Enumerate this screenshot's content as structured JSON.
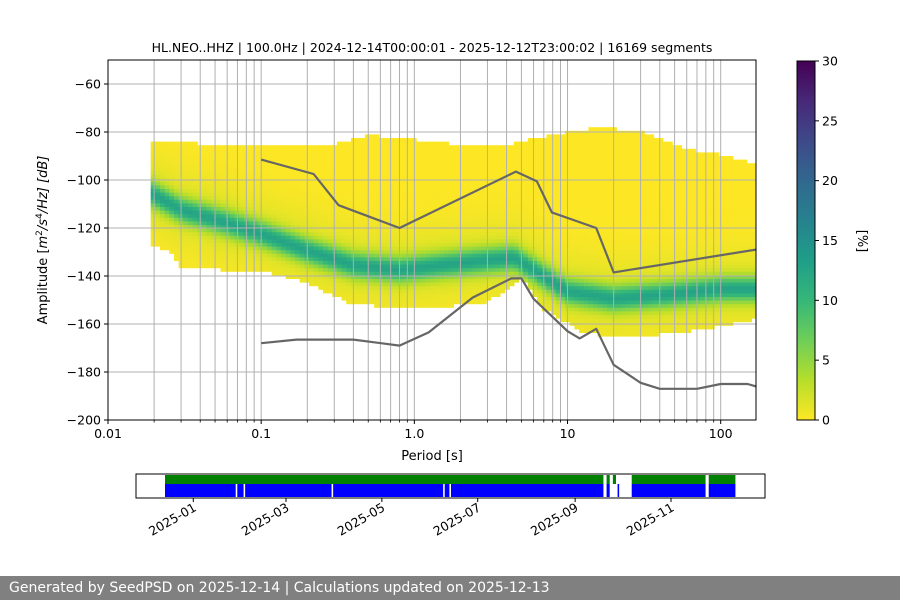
{
  "chart_data": [
    {
      "type": "heatmap",
      "title": "HL.NEO..HHZ | 100.0Hz | 2024-12-14T00:00:01 - 2025-12-12T23:00:02 | 16169 segments",
      "xlabel": "Period [s]",
      "ylabel_parts": {
        "pre": "Amplitude [",
        "m": "m",
        "sup1": "2",
        "mid": "/s",
        "sup2": "4",
        "post": "/Hz] [dB]"
      },
      "xscale": "log",
      "xlim": [
        0.01,
        170
      ],
      "ylim": [
        -200,
        -50
      ],
      "x_ticks": [
        0.01,
        0.1,
        1,
        10,
        100
      ],
      "x_tick_labels": [
        "0.01",
        "0.1",
        "1.0",
        "10",
        "100"
      ],
      "y_ticks": [
        -200,
        -180,
        -160,
        -140,
        -120,
        -100,
        -80,
        -60
      ],
      "y_tick_labels": [
        "−200",
        "−180",
        "−160",
        "−140",
        "−120",
        "−100",
        "−80",
        "−60"
      ],
      "grid": true,
      "colorbar": {
        "label": "[%]",
        "range": [
          0,
          30
        ],
        "ticks": [
          0,
          5,
          10,
          15,
          20,
          25,
          30
        ],
        "tick_labels": [
          "0",
          "5",
          "10",
          "15",
          "20",
          "25",
          "30"
        ],
        "colormap": [
          "#fde725",
          "#b5de2b",
          "#6ece58",
          "#35b779",
          "#1f9e89",
          "#26828e",
          "#31688e",
          "#3e4989",
          "#482878",
          "#440154"
        ]
      },
      "density": {
        "period_range": [
          0.019,
          170
        ],
        "mode": [
          [
            0.019,
            -106
          ],
          [
            0.03,
            -113
          ],
          [
            0.05,
            -117
          ],
          [
            0.1,
            -123
          ],
          [
            0.2,
            -130
          ],
          [
            0.4,
            -136
          ],
          [
            0.8,
            -138
          ],
          [
            1.5,
            -136
          ],
          [
            3,
            -134
          ],
          [
            4.5,
            -133
          ],
          [
            6,
            -138
          ],
          [
            10,
            -147
          ],
          [
            20,
            -150
          ],
          [
            50,
            -148
          ],
          [
            100,
            -146
          ],
          [
            170,
            -146
          ]
        ],
        "upper": [
          [
            0.019,
            -85
          ],
          [
            0.03,
            -85
          ],
          [
            0.05,
            -86
          ],
          [
            0.1,
            -86
          ],
          [
            0.3,
            -86
          ],
          [
            0.5,
            -82
          ],
          [
            1,
            -84
          ],
          [
            2,
            -86
          ],
          [
            4,
            -86
          ],
          [
            8,
            -82
          ],
          [
            15,
            -79
          ],
          [
            30,
            -80
          ],
          [
            60,
            -88
          ],
          [
            100,
            -90
          ],
          [
            170,
            -94
          ]
        ],
        "lower": [
          [
            0.019,
            -127
          ],
          [
            0.025,
            -128
          ],
          [
            0.03,
            -136
          ],
          [
            0.1,
            -137
          ],
          [
            0.2,
            -142
          ],
          [
            0.4,
            -151
          ],
          [
            0.8,
            -152
          ],
          [
            1.5,
            -152
          ],
          [
            3,
            -150
          ],
          [
            5,
            -140
          ],
          [
            7,
            -153
          ],
          [
            12,
            -162
          ],
          [
            20,
            -165
          ],
          [
            50,
            -163
          ],
          [
            100,
            -160
          ],
          [
            170,
            -157
          ]
        ]
      },
      "series": [
        {
          "name": "",
          "color": "#666666",
          "x": [
            0.1,
            0.22,
            0.32,
            0.8,
            4.6,
            6.3,
            7.9,
            15.4,
            20,
            170
          ],
          "y": [
            -91.5,
            -97.5,
            -110.5,
            -120,
            -96.5,
            -100.5,
            -113.5,
            -120,
            -138.5,
            -129
          ]
        },
        {
          "name": "",
          "color": "#666666",
          "x": [
            0.1,
            0.17,
            0.4,
            0.8,
            1.24,
            2.4,
            4.3,
            5.0,
            6.0,
            10,
            12,
            15.4,
            20,
            30,
            40,
            70,
            100,
            150,
            170
          ],
          "y": [
            -168,
            -166.5,
            -166.5,
            -169,
            -163.5,
            -149,
            -141,
            -141,
            -149.5,
            -163,
            -166,
            -162,
            -177,
            -184.5,
            -187,
            -187,
            -185,
            -185,
            -186
          ]
        }
      ]
    },
    {
      "type": "timeline",
      "x_ticks": [
        "2025-01",
        "2025-03",
        "2025-05",
        "2025-07",
        "2025-09",
        "2025-11"
      ],
      "green_ranges": [
        [
          "2024-12-14",
          "2025-09-19"
        ],
        [
          "2025-09-21",
          "2025-09-23"
        ],
        [
          "2025-09-25",
          "2025-09-27"
        ],
        [
          "2025-10-07",
          "2025-11-23"
        ],
        [
          "2025-11-25",
          "2025-12-12"
        ]
      ],
      "blue_ranges": [
        [
          "2024-12-14",
          "2025-01-28"
        ],
        [
          "2025-01-29",
          "2025-02-02"
        ],
        [
          "2025-02-03",
          "2025-03-30"
        ],
        [
          "2025-03-31",
          "2025-06-09"
        ],
        [
          "2025-06-10",
          "2025-06-13"
        ],
        [
          "2025-06-14",
          "2025-09-19"
        ],
        [
          "2025-09-21",
          "2025-09-23"
        ],
        [
          "2025-09-28",
          "2025-09-29"
        ],
        [
          "2025-10-07",
          "2025-11-23"
        ],
        [
          "2025-11-25",
          "2025-12-12"
        ]
      ]
    }
  ],
  "footer": {
    "text": "Generated by SeedPSD on 2025-12-14 | Calculations updated on 2025-12-13"
  }
}
